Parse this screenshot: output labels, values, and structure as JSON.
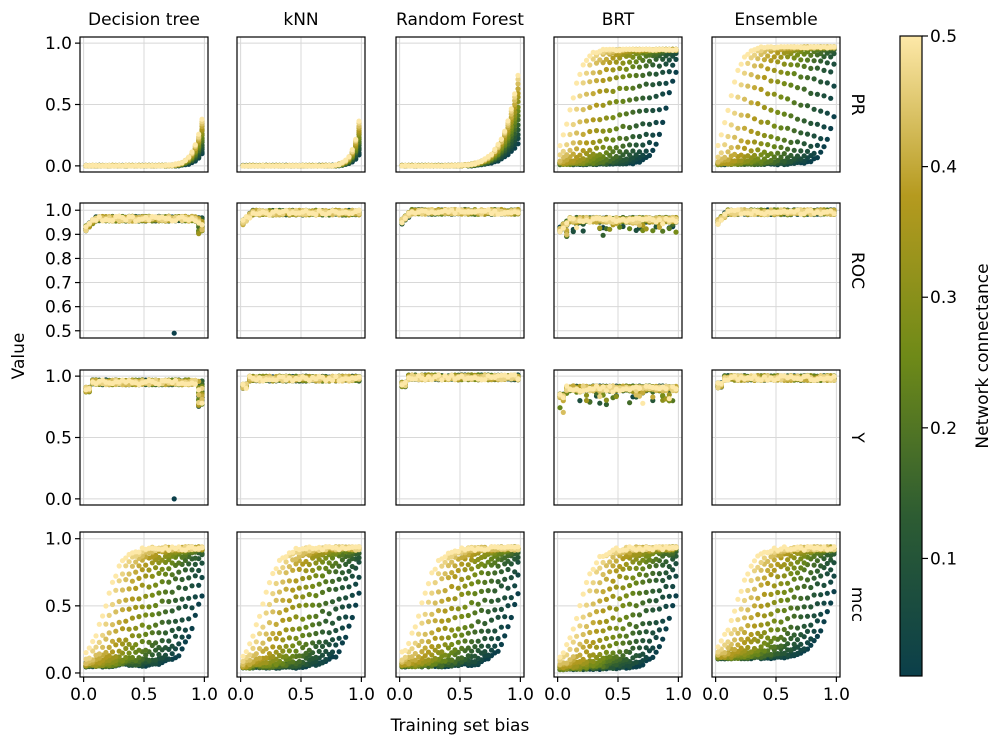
{
  "chart_data": {
    "type": "scatter",
    "layout": "facet-grid",
    "columns": [
      "Decision tree",
      "kNN",
      "Random Forest",
      "BRT",
      "Ensemble"
    ],
    "rows": [
      "PR",
      "ROC",
      "Y",
      "mcc"
    ],
    "xlabel": "Training set bias",
    "ylabel": "Value",
    "xlim": [
      0,
      1
    ],
    "x_ticks": [
      "0.0",
      "0.5",
      "1.0"
    ],
    "colorbar": {
      "label": "Network connectance",
      "range": [
        0.01,
        0.5
      ],
      "ticks": [
        "0.1",
        "0.2",
        "0.3",
        "0.4",
        "0.5"
      ],
      "colors": [
        "#0b3f4a",
        "#2d5c32",
        "#6f8a18",
        "#b59a1f",
        "#fde8a8"
      ]
    },
    "row_axes": [
      {
        "row": "PR",
        "ylim": [
          -0.05,
          1.05
        ],
        "y_ticks": [
          "0.0",
          "0.5",
          "1.0"
        ]
      },
      {
        "row": "ROC",
        "ylim": [
          0.47,
          1.03
        ],
        "y_ticks": [
          "0.5",
          "0.6",
          "0.7",
          "0.8",
          "0.9",
          "1.0"
        ]
      },
      {
        "row": "Y",
        "ylim": [
          -0.05,
          1.05
        ],
        "y_ticks": [
          "0.0",
          "0.5",
          "1.0"
        ]
      },
      {
        "row": "mcc",
        "ylim": [
          -0.03,
          1.05
        ],
        "y_ticks": [
          "0.0",
          "0.5",
          "1.0"
        ]
      }
    ],
    "panels": [
      {
        "row": "PR",
        "column": "Decision tree",
        "pattern": "rising curve near zero, sharp rise at high bias",
        "max_y": 0.5
      },
      {
        "row": "PR",
        "column": "kNN",
        "pattern": "rising curve near zero, sharp rise at high bias",
        "max_y": 0.52
      },
      {
        "row": "PR",
        "column": "Random Forest",
        "pattern": "rising curve, sharp rise at high bias",
        "max_y": 0.87
      },
      {
        "row": "PR",
        "column": "BRT",
        "pattern": "fan of curves from 0 to 0.95",
        "max_y": 0.95
      },
      {
        "row": "PR",
        "column": "Ensemble",
        "pattern": "fan of curves from 0 to 0.97",
        "max_y": 0.97
      },
      {
        "row": "ROC",
        "column": "Decision tree",
        "pattern": "plateau near 0.97 with outlier",
        "outlier": [
          0.75,
          0.49
        ]
      },
      {
        "row": "ROC",
        "column": "kNN",
        "pattern": "plateau near 0.99"
      },
      {
        "row": "ROC",
        "column": "Random Forest",
        "pattern": "plateau near 0.99"
      },
      {
        "row": "ROC",
        "column": "BRT",
        "pattern": "plateau near 0.96, spread down to 0.84"
      },
      {
        "row": "ROC",
        "column": "Ensemble",
        "pattern": "plateau near 0.99"
      },
      {
        "row": "Y",
        "column": "Decision tree",
        "pattern": "plateau near 0.95 with outlier",
        "outlier": [
          0.75,
          0.0
        ]
      },
      {
        "row": "Y",
        "column": "kNN",
        "pattern": "plateau near 0.98"
      },
      {
        "row": "Y",
        "column": "Random Forest",
        "pattern": "plateau near 0.99"
      },
      {
        "row": "Y",
        "column": "BRT",
        "pattern": "plateau near 0.9, spread down to 0.72"
      },
      {
        "row": "Y",
        "column": "Ensemble",
        "pattern": "plateau near 0.98"
      },
      {
        "row": "mcc",
        "column": "Decision tree",
        "pattern": "fan of curves from 0.05 to 0.93"
      },
      {
        "row": "mcc",
        "column": "kNN",
        "pattern": "fan of curves from 0.05 to 0.93"
      },
      {
        "row": "mcc",
        "column": "Random Forest",
        "pattern": "fan of curves from 0.05 to 0.93"
      },
      {
        "row": "mcc",
        "column": "BRT",
        "pattern": "fan of curves from 0.03 to 0.92"
      },
      {
        "row": "mcc",
        "column": "Ensemble",
        "pattern": "fan of curves from 0.1 to 0.93"
      }
    ]
  }
}
